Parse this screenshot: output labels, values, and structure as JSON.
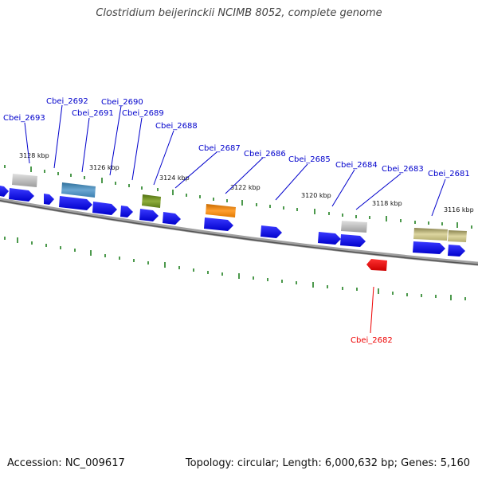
{
  "header": {
    "title": "Clostridium beijerinckii NCIMB 8052, complete genome"
  },
  "footer": {
    "accession": "Accession: NC_009617",
    "summary": "Topology: circular; Length: 6,000,632 bp; Genes: 5,160"
  },
  "genes": {
    "cbei_2693": "Cbei_2693",
    "cbei_2692": "Cbei_2692",
    "cbei_2691": "Cbei_2691",
    "cbei_2690": "Cbei_2690",
    "cbei_2689": "Cbei_2689",
    "cbei_2688": "Cbei_2688",
    "cbei_2687": "Cbei_2687",
    "cbei_2686": "Cbei_2686",
    "cbei_2685": "Cbei_2685",
    "cbei_2684": "Cbei_2684",
    "cbei_2683": "Cbei_2683",
    "cbei_2681": "Cbei_2681",
    "cbei_2682": "Cbei_2682"
  },
  "scale": {
    "k3128": "3128 kbp",
    "k3126": "3126 kbp",
    "k3124": "3124 kbp",
    "k3122": "3122 kbp",
    "k3120": "3120 kbp",
    "k3118": "3118 kbp",
    "k3116": "3116 kbp"
  },
  "colors": {
    "forward_gene": "#0000ee",
    "reverse_gene": "#ee0000",
    "label_forward": "#0000cc",
    "label_reverse": "#ee0000",
    "backbone": "#777777",
    "tick": "#117711",
    "hit_grey": "#b8b8b8",
    "hit_steelblue": "#4a88b8",
    "hit_olive": "#6f8f22",
    "hit_orange": "#f08a10",
    "hit_khaki": "#c8c080"
  }
}
